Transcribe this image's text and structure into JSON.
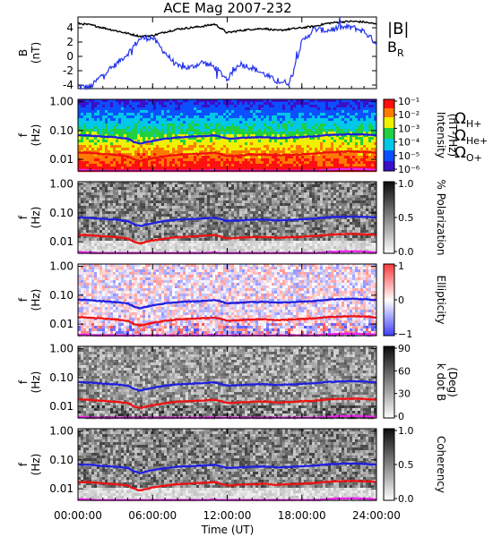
{
  "title": "ACE Mag 2007-232",
  "colors": {
    "B": "#000000",
    "BR": "#2233ee",
    "H": "#1f1fe0",
    "He": "#ee1111",
    "O": "#ee22ee"
  },
  "legend": {
    "B": "|B|",
    "BR": "B",
    "BR_sub": "R",
    "omega": "Ω",
    "H_sub": "H+",
    "He_sub": "He+",
    "O_sub": "O+"
  },
  "x_axis": {
    "label": "Time (UT)",
    "range": [
      0,
      24
    ],
    "ticks": [
      0,
      6,
      12,
      18,
      24
    ],
    "tick_labels": [
      "00:00:00",
      "06:00:00",
      "12:00:00",
      "18:00:00",
      "24:00:00"
    ]
  },
  "chart_data": [
    {
      "type": "line",
      "ylabel_1": "B",
      "ylabel_2": "(nT)",
      "ylim": [
        -4.5,
        5.5
      ],
      "yticks": [
        4,
        2,
        0,
        -2,
        -4
      ],
      "ytick_labels": [
        "4",
        "2",
        "0",
        "-2",
        "-4"
      ],
      "x": [
        0,
        1,
        2,
        3,
        4,
        5,
        6,
        7,
        8,
        9,
        10,
        11,
        12,
        13,
        14,
        15,
        16,
        17,
        18,
        19,
        20,
        21,
        22,
        23,
        24
      ],
      "series": [
        {
          "name": "|B|",
          "values": [
            4.6,
            4.4,
            4.0,
            3.6,
            3.2,
            2.8,
            2.9,
            3.4,
            3.8,
            4.0,
            4.2,
            4.5,
            3.3,
            3.6,
            3.8,
            3.9,
            3.6,
            3.8,
            4.0,
            4.2,
            4.6,
            4.8,
            4.9,
            4.8,
            4.5
          ]
        },
        {
          "name": "B_R",
          "values": [
            -4.2,
            -4.3,
            -2.5,
            -1.2,
            0.4,
            2.5,
            2.6,
            0.5,
            -1.4,
            -1.6,
            -0.8,
            -1.5,
            -3.2,
            -1.0,
            -1.6,
            -2.5,
            -3.5,
            -3.7,
            2.0,
            3.8,
            3.6,
            4.0,
            4.1,
            3.5,
            1.8
          ]
        }
      ]
    },
    {
      "type": "heatmap",
      "name": "intensity",
      "ylabel_1": "f",
      "ylabel_2": "(Hz)",
      "yticks": [
        1.0,
        0.1,
        0.01
      ],
      "ytick_labels": [
        "1.00",
        "0.10",
        "0.01"
      ],
      "ylim": [
        0.004,
        1.2
      ],
      "colorbar_label": "Intensity",
      "colorbar_label_2": "(nT²/Hz)",
      "colorbar_range": [
        1e-06,
        0.1
      ],
      "colorbar_ticks": [
        "10⁻¹",
        "10⁻²",
        "10⁻³",
        "10⁻⁴",
        "10⁻⁵",
        "10⁻⁶"
      ]
    },
    {
      "type": "heatmap",
      "name": "polarization",
      "ylabel_1": "f",
      "ylabel_2": "(Hz)",
      "yticks": [
        1.0,
        0.1,
        0.01
      ],
      "ytick_labels": [
        "1.00",
        "0.10",
        "0.01"
      ],
      "ylim": [
        0.004,
        1.2
      ],
      "colorbar_label": "% Polarization",
      "colorbar_range": [
        0,
        1
      ],
      "colorbar_ticks": [
        "1.0",
        "0.5",
        "0.0"
      ]
    },
    {
      "type": "heatmap",
      "name": "ellipticity",
      "ylabel_1": "f",
      "ylabel_2": "(Hz)",
      "yticks": [
        1.0,
        0.1,
        0.01
      ],
      "ytick_labels": [
        "1.00",
        "0.10",
        "0.01"
      ],
      "ylim": [
        0.004,
        1.2
      ],
      "colorbar_label": "Ellipticity",
      "colorbar_range": [
        -1,
        1
      ],
      "colorbar_ticks": [
        "1",
        "0",
        "−1"
      ]
    },
    {
      "type": "heatmap",
      "name": "kdotb",
      "ylabel_1": "f",
      "ylabel_2": "(Hz)",
      "yticks": [
        1.0,
        0.1,
        0.01
      ],
      "ytick_labels": [
        "1.00",
        "0.10",
        "0.01"
      ],
      "ylim": [
        0.004,
        1.2
      ],
      "colorbar_label": "k dot B",
      "colorbar_label_2": "(Deg)",
      "colorbar_range": [
        0,
        90
      ],
      "colorbar_ticks": [
        "90",
        "60",
        "30",
        "0"
      ]
    },
    {
      "type": "heatmap",
      "name": "coherency",
      "ylabel_1": "f",
      "ylabel_2": "(Hz)",
      "yticks": [
        1.0,
        0.1,
        0.01
      ],
      "ytick_labels": [
        "1.00",
        "0.10",
        "0.01"
      ],
      "ylim": [
        0.004,
        1.2
      ],
      "colorbar_label": "Coherency",
      "colorbar_range": [
        0,
        1
      ],
      "colorbar_ticks": [
        "1.0",
        "0.5",
        "0.0"
      ]
    }
  ],
  "gyrofrequency_lines": {
    "x": [
      0,
      1,
      2,
      3,
      4,
      4.5,
      5,
      5.5,
      6,
      7,
      8,
      9,
      10,
      11,
      12,
      13,
      14,
      15,
      16,
      17,
      18,
      19,
      20,
      21,
      22,
      23,
      24
    ],
    "H+": [
      0.07,
      0.067,
      0.062,
      0.058,
      0.052,
      0.04,
      0.035,
      0.04,
      0.044,
      0.052,
      0.058,
      0.061,
      0.064,
      0.068,
      0.052,
      0.055,
      0.058,
      0.059,
      0.055,
      0.057,
      0.06,
      0.063,
      0.07,
      0.073,
      0.075,
      0.073,
      0.068
    ],
    "He+": [
      0.0175,
      0.0168,
      0.0155,
      0.0145,
      0.013,
      0.01,
      0.0088,
      0.01,
      0.011,
      0.013,
      0.0145,
      0.0152,
      0.016,
      0.017,
      0.013,
      0.0138,
      0.0145,
      0.0148,
      0.0138,
      0.0143,
      0.015,
      0.0158,
      0.0175,
      0.0183,
      0.0188,
      0.0183,
      0.017
    ],
    "O+": [
      0.0044,
      0.0042,
      0.0039,
      0.0036,
      0.0033,
      0.003,
      0.003,
      0.003,
      0.003,
      0.0033,
      0.0036,
      0.0038,
      0.004,
      0.0043,
      0.0033,
      0.0035,
      0.0036,
      0.0037,
      0.0035,
      0.0036,
      0.0038,
      0.004,
      0.0044,
      0.0046,
      0.0047,
      0.0046,
      0.0043
    ]
  }
}
